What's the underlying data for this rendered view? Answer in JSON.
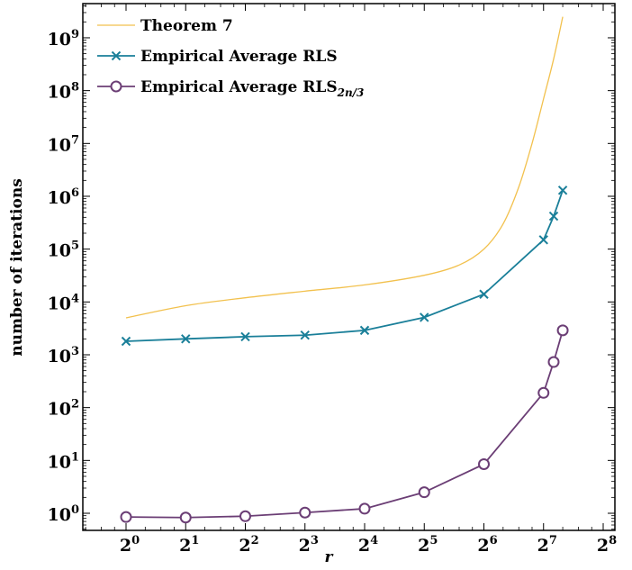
{
  "chart_data": {
    "type": "line",
    "xlabel": "r",
    "ylabel": "number of iterations",
    "x_scale": "log2",
    "y_scale": "log10",
    "xlim": [
      0.5,
      256
    ],
    "ylim": [
      0.6,
      4000000000
    ],
    "x_ticks": [
      {
        "value": 1,
        "base": "2",
        "exp": "0"
      },
      {
        "value": 2,
        "base": "2",
        "exp": "1"
      },
      {
        "value": 4,
        "base": "2",
        "exp": "2"
      },
      {
        "value": 8,
        "base": "2",
        "exp": "3"
      },
      {
        "value": 16,
        "base": "2",
        "exp": "4"
      },
      {
        "value": 32,
        "base": "2",
        "exp": "5"
      },
      {
        "value": 64,
        "base": "2",
        "exp": "6"
      },
      {
        "value": 128,
        "base": "2",
        "exp": "7"
      },
      {
        "value": 256,
        "base": "2",
        "exp": "8"
      }
    ],
    "y_ticks": [
      {
        "value": 1,
        "base": "10",
        "exp": "0"
      },
      {
        "value": 10,
        "base": "10",
        "exp": "1"
      },
      {
        "value": 100,
        "base": "10",
        "exp": "2"
      },
      {
        "value": 1000,
        "base": "10",
        "exp": "3"
      },
      {
        "value": 10000,
        "base": "10",
        "exp": "4"
      },
      {
        "value": 100000,
        "base": "10",
        "exp": "5"
      },
      {
        "value": 1000000,
        "base": "10",
        "exp": "6"
      },
      {
        "value": 10000000,
        "base": "10",
        "exp": "7"
      },
      {
        "value": 100000000,
        "base": "10",
        "exp": "8"
      },
      {
        "value": 1000000000,
        "base": "10",
        "exp": "9"
      }
    ],
    "legend_position": "top-left",
    "grid": false,
    "series": [
      {
        "name": "Theorem 7",
        "label_main": "Theorem 7",
        "label_sub": "",
        "color": "#f2c14e",
        "marker": "none",
        "x": [
          1,
          2,
          4,
          8,
          16,
          32,
          48,
          64,
          80,
          96,
          112,
          128,
          144,
          160
        ],
        "y": [
          5000,
          8500,
          12000,
          16000,
          21000,
          32000,
          50000,
          100000,
          300000,
          1500000,
          10000000,
          70000000,
          400000000,
          2500000000
        ]
      },
      {
        "name": "Empirical Average RLS",
        "label_main": "Empirical Average RLS",
        "label_sub": "",
        "color": "#1a7f99",
        "marker": "x",
        "x": [
          1,
          2,
          4,
          8,
          16,
          32,
          64,
          128,
          144,
          160
        ],
        "y": [
          1800,
          2000,
          2200,
          2350,
          2900,
          5100,
          14000,
          150000,
          420000,
          1300000
        ]
      },
      {
        "name": "Empirical Average RLS 2n/3",
        "label_main": "Empirical Average RLS",
        "label_sub": "2n/3",
        "color": "#6b3e75",
        "marker": "circle",
        "x": [
          1,
          2,
          4,
          8,
          16,
          32,
          64,
          128,
          144,
          160
        ],
        "y": [
          0.85,
          0.83,
          0.88,
          1.03,
          1.22,
          2.5,
          8.5,
          190,
          730,
          2900
        ]
      }
    ]
  }
}
